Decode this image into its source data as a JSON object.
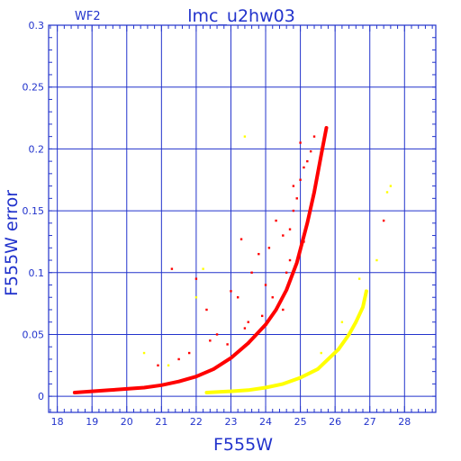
{
  "chart_data": {
    "type": "scatter",
    "title": "lmc_u2hw03",
    "corner_label": "WF2",
    "xlabel": "F555W",
    "ylabel": "F555W error",
    "xlim": [
      17.75,
      28.9
    ],
    "ylim": [
      -0.013,
      0.3
    ],
    "xticks": [
      18,
      19,
      20,
      21,
      22,
      23,
      24,
      25,
      26,
      27,
      28
    ],
    "yticks": [
      0,
      0.05,
      0.1,
      0.15,
      0.2,
      0.25,
      0.3
    ],
    "ytick_labels": [
      "0",
      "0.05",
      "0.1",
      "0.15",
      "0.2",
      "0.25",
      "0.3"
    ],
    "grid": true,
    "colors": {
      "axis": "#2233cc",
      "grid": "#2233cc",
      "main": "#ff0000",
      "secondary": "#ffff00"
    },
    "series": [
      {
        "color": "#ff0000",
        "curve": {
          "x": [
            18.5,
            19.0,
            19.5,
            20.0,
            20.5,
            21.0,
            21.5,
            22.0,
            22.5,
            23.0,
            23.5,
            24.0,
            24.3,
            24.6,
            24.9,
            25.2,
            25.4,
            25.6,
            25.75
          ],
          "y": [
            0.003,
            0.004,
            0.005,
            0.006,
            0.007,
            0.009,
            0.012,
            0.016,
            0.022,
            0.031,
            0.043,
            0.058,
            0.07,
            0.086,
            0.108,
            0.14,
            0.165,
            0.195,
            0.217
          ]
        },
        "scatter_points": {
          "x": [
            21.3,
            22.0,
            22.3,
            22.6,
            22.9,
            23.0,
            23.2,
            23.3,
            23.5,
            23.6,
            23.8,
            24.0,
            24.1,
            24.3,
            24.5,
            24.6,
            24.7,
            24.8,
            24.9,
            25.0,
            25.1,
            25.2,
            25.0,
            24.8,
            25.3,
            25.4,
            24.5,
            23.9,
            23.4,
            21.5,
            21.8,
            20.9,
            22.4,
            24.2,
            24.7,
            25.1,
            27.4
          ],
          "y": [
            0.103,
            0.095,
            0.07,
            0.05,
            0.042,
            0.085,
            0.08,
            0.127,
            0.06,
            0.1,
            0.115,
            0.09,
            0.12,
            0.142,
            0.13,
            0.1,
            0.135,
            0.15,
            0.16,
            0.175,
            0.185,
            0.19,
            0.205,
            0.17,
            0.198,
            0.21,
            0.07,
            0.065,
            0.055,
            0.03,
            0.035,
            0.025,
            0.045,
            0.08,
            0.11,
            0.125,
            0.142
          ]
        }
      },
      {
        "color": "#ffff00",
        "curve": {
          "x": [
            22.3,
            23.0,
            23.5,
            24.0,
            24.5,
            25.0,
            25.5,
            25.8,
            26.1,
            26.4,
            26.6,
            26.8,
            26.9
          ],
          "y": [
            0.003,
            0.004,
            0.005,
            0.007,
            0.01,
            0.015,
            0.022,
            0.03,
            0.038,
            0.05,
            0.06,
            0.072,
            0.085
          ]
        },
        "scatter_points": {
          "x": [
            23.4,
            27.6,
            27.2,
            20.5,
            22.2,
            21.2,
            22.0,
            27.5,
            26.7,
            26.2,
            25.6
          ],
          "y": [
            0.21,
            0.17,
            0.11,
            0.035,
            0.103,
            0.025,
            0.08,
            0.165,
            0.095,
            0.06,
            0.035
          ]
        }
      }
    ]
  }
}
